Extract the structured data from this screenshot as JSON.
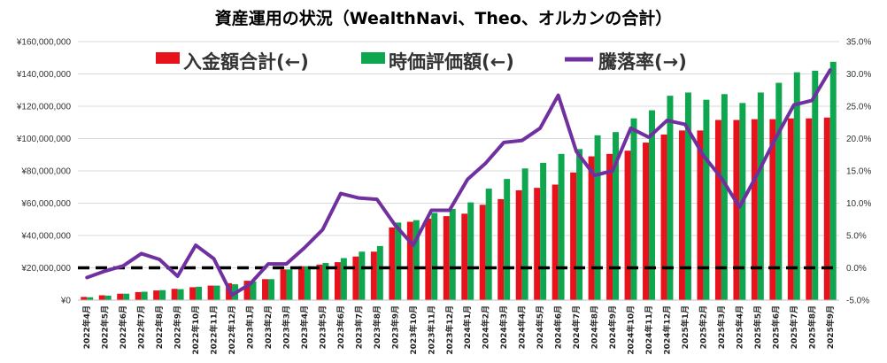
{
  "chart_data": {
    "type": "bar",
    "title": "資産運用の状況（WealthNavi、Theo、オルカンの合計）",
    "categories": [
      "2022年4月",
      "2022年5月",
      "2022年6月",
      "2022年7月",
      "2022年8月",
      "2022年9月",
      "2022年10月",
      "2022年11月",
      "2022年12月",
      "2023年1月",
      "2023年2月",
      "2023年3月",
      "2023年4月",
      "2023年5月",
      "2023年6月",
      "2023年7月",
      "2023年8月",
      "2023年9月",
      "2023年10月",
      "2023年11月",
      "2023年12月",
      "2024年1月",
      "2024年2月",
      "2024年3月",
      "2024年4月",
      "2024年5月",
      "2024年6月",
      "2024年7月",
      "2024年8月",
      "2024年9月",
      "2024年10月",
      "2024年11月",
      "2024年12月",
      "2025年1月",
      "2025年2月",
      "2025年3月",
      "2025年4月",
      "2025年5月",
      "2025年6月",
      "2025年7月",
      "2025年8月",
      "2025年9月"
    ],
    "series": [
      {
        "name": "入金額合計(←)",
        "type": "bar",
        "axis": "left",
        "color": "#e8121c",
        "values": [
          2000000,
          3000000,
          4000000,
          5000000,
          6000000,
          7000000,
          8000000,
          9000000,
          10500000,
          12000000,
          13000000,
          19000000,
          21000000,
          22000000,
          23500000,
          27000000,
          30000000,
          45000000,
          48500000,
          50500000,
          52000000,
          53500000,
          59000000,
          62500000,
          68000000,
          69500000,
          71500000,
          79000000,
          89000000,
          90500000,
          92500000,
          97500000,
          102500000,
          105000000,
          105000000,
          111500000,
          111500000,
          112000000,
          112000000,
          112500000,
          112500000,
          113000000
        ]
      },
      {
        "name": "時価評価額(←)",
        "type": "bar",
        "axis": "left",
        "color": "#0ea64e",
        "values": [
          1800000,
          2800000,
          4000000,
          5200000,
          6200000,
          6800000,
          8300000,
          9000000,
          9800000,
          11500000,
          13000000,
          19000000,
          21000000,
          23000000,
          26000000,
          30000000,
          33500000,
          48000000,
          49500000,
          54000000,
          56500000,
          60500000,
          69000000,
          75000000,
          81500000,
          85000000,
          90500000,
          93500000,
          102000000,
          104000000,
          112500000,
          117500000,
          126500000,
          128500000,
          124000000,
          127500000,
          122000000,
          128500000,
          134500000,
          141000000,
          142000000,
          147500000
        ]
      },
      {
        "name": "騰落率(→)",
        "type": "line",
        "axis": "right",
        "color": "#7030a0",
        "values": [
          -1.5,
          -0.5,
          0.3,
          2.2,
          1.3,
          -1.3,
          3.5,
          1.4,
          -4.2,
          -2.5,
          0.6,
          0.6,
          3.1,
          5.9,
          11.5,
          10.8,
          10.6,
          6.6,
          3.5,
          8.9,
          8.9,
          13.7,
          16.2,
          19.4,
          19.7,
          21.6,
          26.7,
          18.0,
          14.3,
          15.0,
          21.6,
          20.2,
          22.8,
          22.2,
          17.4,
          13.9,
          9.4,
          14.6,
          20.1,
          25.2,
          25.9,
          30.6
        ]
      }
    ],
    "left_axis": {
      "min": 0,
      "max": 160000000,
      "step": 20000000,
      "tick_labels": [
        "¥0",
        "¥20,000,000",
        "¥40,000,000",
        "¥60,000,000",
        "¥80,000,000",
        "¥100,000,000",
        "¥120,000,000",
        "¥140,000,000",
        "¥160,000,000"
      ]
    },
    "right_axis": {
      "min": -5,
      "max": 35,
      "step": 5,
      "tick_labels": [
        "-5.0%",
        "0.0%",
        "5.0%",
        "10.0%",
        "15.0%",
        "20.0%",
        "25.0%",
        "30.0%",
        "35.0%"
      ]
    },
    "reference_line": {
      "axis": "left",
      "value": 20000000,
      "style": "dashed",
      "color": "#000000"
    },
    "grid": true,
    "legend": "top-center"
  }
}
